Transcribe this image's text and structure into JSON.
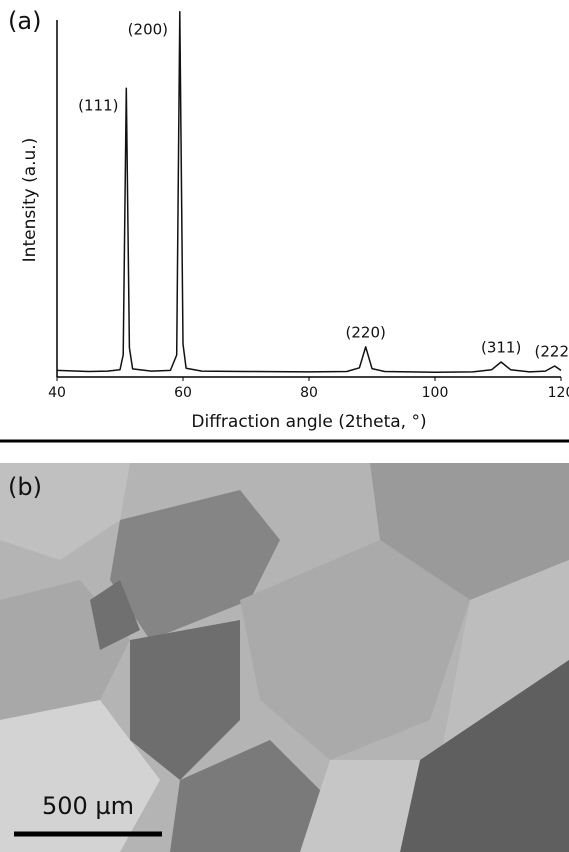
{
  "chart_data": {
    "type": "line",
    "x": [
      40,
      45,
      48,
      50,
      50.5,
      51,
      51.5,
      52,
      55,
      58,
      59,
      59.5,
      60,
      60.5,
      63,
      70,
      80,
      86,
      88,
      89,
      90,
      92,
      100,
      106,
      109,
      110.5,
      112,
      115,
      117.5,
      119,
      120
    ],
    "values": [
      1.8,
      1.5,
      1.6,
      2.0,
      6,
      78.7,
      8,
      2.2,
      1.6,
      1.8,
      6,
      99.5,
      9,
      2.4,
      1.6,
      1.5,
      1.4,
      1.5,
      2.5,
      8.2,
      2.3,
      1.5,
      1.3,
      1.4,
      2.0,
      4.1,
      2.0,
      1.4,
      1.6,
      3.0,
      1.8
    ],
    "color": "#111111",
    "xlim": [
      40,
      120
    ],
    "xticks": [
      40,
      60,
      80,
      100,
      120
    ],
    "ylim": [
      0,
      100
    ],
    "x_label": "Diffraction angle (2theta, °)",
    "y_label": "Intensity (a.u.)",
    "annotations": [
      {
        "text": "(111)",
        "x": 51
      },
      {
        "text": "(200)",
        "x": 59.5
      },
      {
        "text": "(220)",
        "x": 89
      },
      {
        "text": "(311)",
        "x": 110.5
      },
      {
        "text": "(222)",
        "x": 119
      }
    ]
  },
  "panels": [
    "(a)",
    "(b)"
  ],
  "scale_bar": "500 µm"
}
